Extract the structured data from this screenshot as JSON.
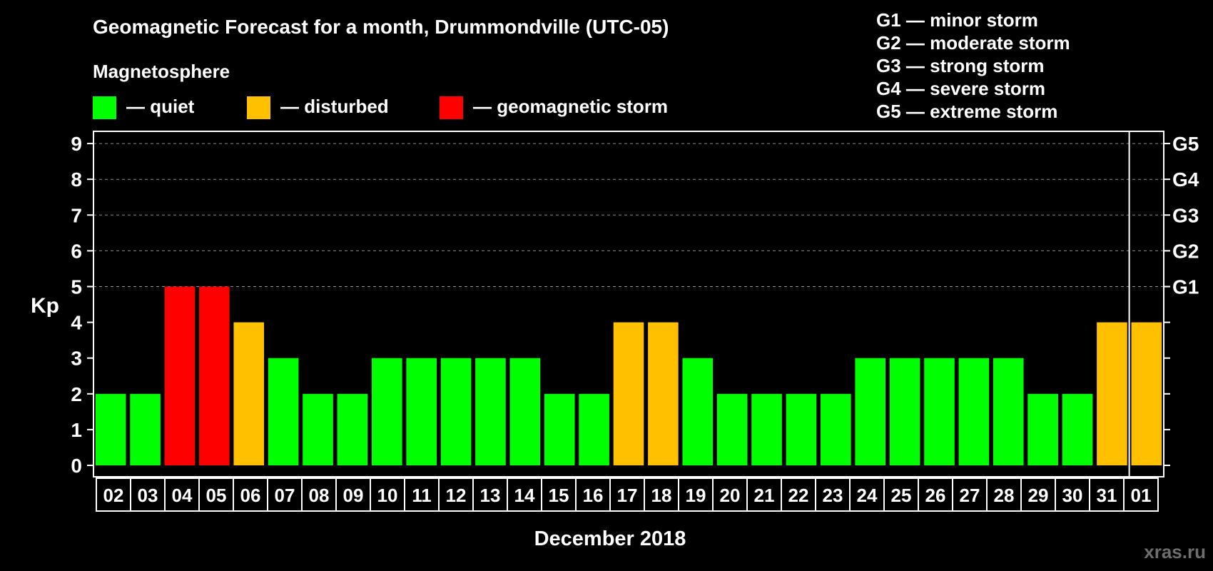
{
  "chart_data": {
    "type": "bar",
    "title": "Geomagnetic Forecast for a month, Drummondville (UTC-05)",
    "legend": {
      "heading": "Magnetosphere",
      "items": [
        {
          "key": "quiet",
          "label": "— quiet",
          "color": "#00ff00"
        },
        {
          "key": "disturbed",
          "label": "— disturbed",
          "color": "#ffc000"
        },
        {
          "key": "storm",
          "label": "— geomagnetic storm",
          "color": "#ff0000"
        }
      ]
    },
    "storm_scale": [
      "G1 — minor storm",
      "G2 — moderate storm",
      "G3 — strong storm",
      "G4 — severe storm",
      "G5 — extreme storm"
    ],
    "ylabel": "Kp",
    "xlabel": "December 2018",
    "ylim": [
      0,
      9
    ],
    "yticks": [
      "0",
      "1",
      "2",
      "3",
      "4",
      "5",
      "6",
      "7",
      "8",
      "9"
    ],
    "right_axis_labels": [
      {
        "kp": 5,
        "label": "G1"
      },
      {
        "kp": 6,
        "label": "G2"
      },
      {
        "kp": 7,
        "label": "G3"
      },
      {
        "kp": 8,
        "label": "G4"
      },
      {
        "kp": 9,
        "label": "G5"
      }
    ],
    "categories": [
      "02",
      "03",
      "04",
      "05",
      "06",
      "07",
      "08",
      "09",
      "10",
      "11",
      "12",
      "13",
      "14",
      "15",
      "16",
      "17",
      "18",
      "19",
      "20",
      "21",
      "22",
      "23",
      "24",
      "25",
      "26",
      "27",
      "28",
      "29",
      "30",
      "31",
      "01"
    ],
    "values": [
      2,
      2,
      5,
      5,
      4,
      3,
      2,
      2,
      3,
      3,
      3,
      3,
      3,
      2,
      2,
      4,
      4,
      3,
      2,
      2,
      2,
      2,
      3,
      3,
      3,
      3,
      3,
      2,
      2,
      4,
      4
    ],
    "month_divider_before": "01",
    "grid": "dashed at integer Kp levels 5–9"
  },
  "watermark": "xras.ru"
}
